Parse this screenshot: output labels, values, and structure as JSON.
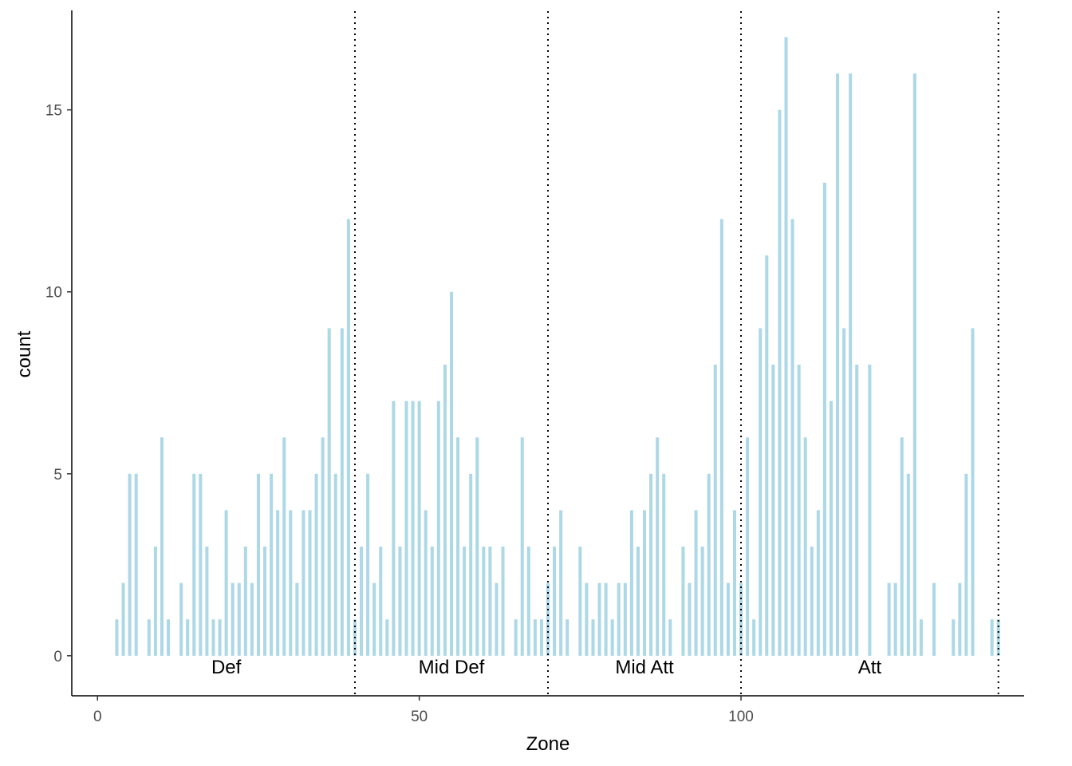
{
  "chart_data": {
    "type": "bar",
    "xlabel": "Zone",
    "ylabel": "count",
    "xlim": [
      -4,
      144
    ],
    "ylim": [
      -1.1,
      17.8
    ],
    "x_ticks": [
      0,
      50,
      100
    ],
    "y_ticks": [
      0,
      5,
      10,
      15
    ],
    "grid": false,
    "bar_color": "#add8e6",
    "bar_width": 0.5,
    "x": [
      3,
      4,
      5,
      6,
      8,
      9,
      10,
      11,
      13,
      14,
      15,
      16,
      17,
      18,
      19,
      20,
      21,
      22,
      23,
      24,
      25,
      26,
      27,
      28,
      29,
      30,
      31,
      32,
      33,
      34,
      35,
      36,
      37,
      38,
      39,
      40,
      41,
      42,
      43,
      44,
      45,
      46,
      47,
      48,
      49,
      50,
      51,
      52,
      53,
      54,
      55,
      56,
      57,
      58,
      59,
      60,
      61,
      62,
      63,
      65,
      66,
      67,
      68,
      69,
      70,
      71,
      72,
      73,
      75,
      76,
      77,
      78,
      79,
      80,
      81,
      82,
      83,
      84,
      85,
      86,
      87,
      88,
      89,
      91,
      92,
      93,
      94,
      95,
      96,
      97,
      98,
      99,
      100,
      101,
      102,
      103,
      104,
      105,
      106,
      107,
      108,
      109,
      110,
      111,
      112,
      113,
      114,
      115,
      116,
      117,
      118,
      120,
      123,
      124,
      125,
      126,
      127,
      128,
      130,
      133,
      134,
      135,
      136,
      139,
      140
    ],
    "values": [
      1,
      2,
      5,
      5,
      1,
      3,
      6,
      1,
      2,
      1,
      5,
      5,
      3,
      1,
      1,
      4,
      2,
      2,
      3,
      2,
      5,
      3,
      5,
      4,
      6,
      4,
      2,
      4,
      4,
      5,
      6,
      9,
      5,
      9,
      12,
      1,
      3,
      5,
      2,
      3,
      1,
      7,
      3,
      7,
      7,
      7,
      4,
      3,
      7,
      8,
      10,
      6,
      3,
      5,
      6,
      3,
      3,
      2,
      3,
      1,
      6,
      3,
      1,
      1,
      2,
      3,
      4,
      1,
      3,
      2,
      1,
      2,
      2,
      1,
      2,
      2,
      4,
      3,
      4,
      5,
      6,
      5,
      1,
      3,
      2,
      4,
      3,
      5,
      8,
      12,
      2,
      4,
      2,
      6,
      1,
      9,
      11,
      8,
      15,
      17,
      12,
      8,
      6,
      3,
      4,
      13,
      7,
      16,
      9,
      16,
      8,
      8,
      2,
      2,
      6,
      5,
      16,
      1,
      2,
      1,
      2,
      5,
      9,
      1,
      1
    ],
    "zone_boundaries": [
      40,
      70,
      100,
      140
    ],
    "zone_labels": [
      {
        "text": "Def",
        "x": 20
      },
      {
        "text": "Mid Def",
        "x": 55
      },
      {
        "text": "Mid Att",
        "x": 85
      },
      {
        "text": "Att",
        "x": 120
      }
    ]
  }
}
